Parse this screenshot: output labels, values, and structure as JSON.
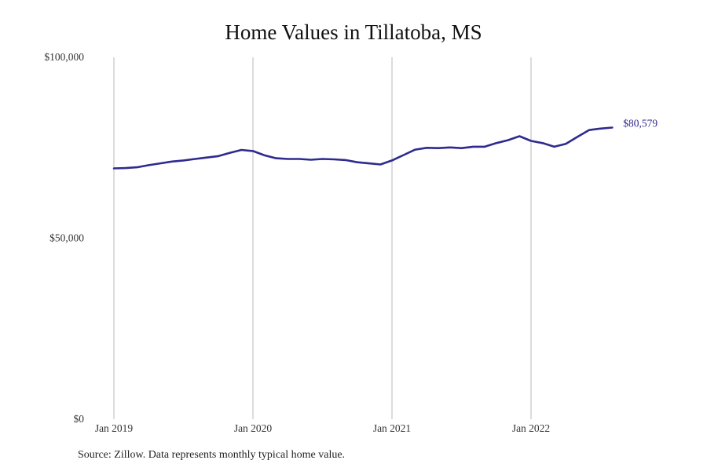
{
  "chart_data": {
    "type": "line",
    "title": "Home Values in Tillatoba, MS",
    "xlabel": "",
    "ylabel": "",
    "y_ticks": [
      "$0",
      "$50,000",
      "$100,000"
    ],
    "ylim": [
      0,
      100000
    ],
    "x_ticks": [
      "Jan 2019",
      "Jan 2020",
      "Jan 2021",
      "Jan 2022"
    ],
    "grid": "vertical lines at each year",
    "end_label": "$80,579",
    "line_color": "#2e2a8f",
    "series": [
      {
        "x": [
          "2019-01",
          "2019-02",
          "2019-03",
          "2019-04",
          "2019-05",
          "2019-06",
          "2019-07",
          "2019-08",
          "2019-09",
          "2019-10",
          "2019-11",
          "2019-12",
          "2020-01",
          "2020-02",
          "2020-03",
          "2020-04",
          "2020-05",
          "2020-06",
          "2020-07",
          "2020-08",
          "2020-09",
          "2020-10",
          "2020-11",
          "2020-12",
          "2021-01",
          "2021-02",
          "2021-03",
          "2021-04",
          "2021-05",
          "2021-06",
          "2021-07",
          "2021-08",
          "2021-09",
          "2021-10",
          "2021-11",
          "2021-12",
          "2022-01",
          "2022-02",
          "2022-03",
          "2022-04",
          "2022-05",
          "2022-06",
          "2022-07",
          "2022-08"
        ],
        "values": [
          69300,
          69400,
          69600,
          70200,
          70700,
          71200,
          71500,
          71900,
          72300,
          72700,
          73600,
          74400,
          74100,
          72900,
          72100,
          71900,
          71900,
          71700,
          71900,
          71800,
          71600,
          71000,
          70700,
          70400,
          71500,
          73000,
          74500,
          75000,
          74900,
          75100,
          74900,
          75300,
          75300,
          76300,
          77100,
          78200,
          76900,
          76300,
          75300,
          76100,
          78000,
          79900,
          80300,
          80579
        ]
      }
    ]
  },
  "source_note": "Source: Zillow. Data represents monthly typical home value."
}
